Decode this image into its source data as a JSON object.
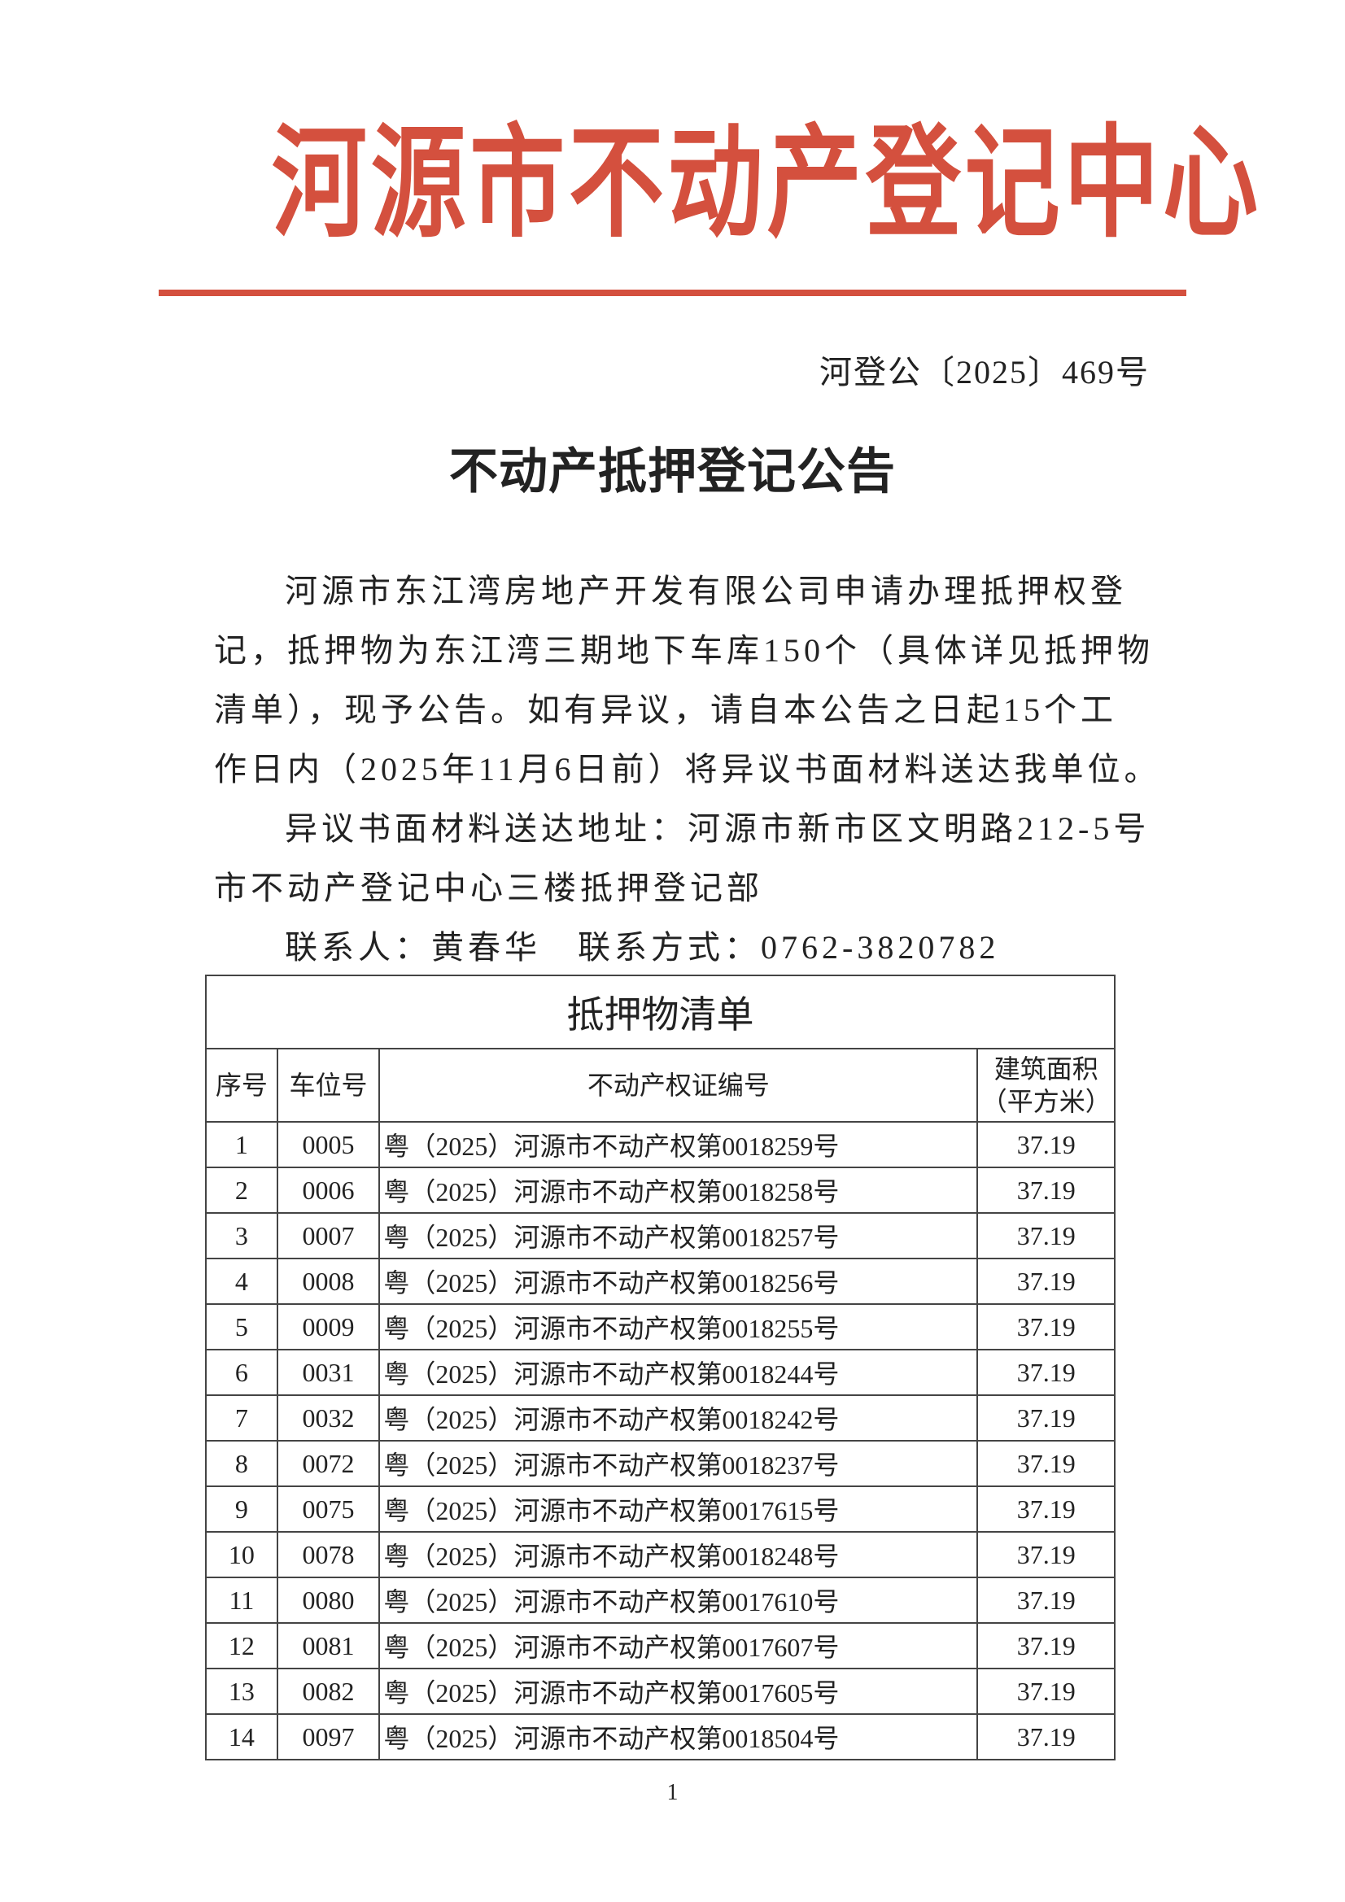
{
  "header": {
    "organization": "河源市不动产登记中心",
    "org_color": "#d4503e",
    "doc_number": "河登公〔2025〕469号"
  },
  "title": "不动产抵押登记公告",
  "body": {
    "paragraph1_lines": [
      "河源市东江湾房地产开发有限公司申请办理抵押权登",
      "记，抵押物为东江湾三期地下车库150个（具体详见抵押物",
      "清单），现予公告。如有异议，请自本公告之日起15个工",
      "作日内（2025年11月6日前）将异议书面材料送达我单位。"
    ],
    "address_lines": [
      "异议书面材料送达地址：河源市新市区文明路212-5号",
      "市不动产登记中心三楼抵押登记部"
    ],
    "contact": "联系人：黄春华　联系方式：0762-3820782"
  },
  "table": {
    "title": "抵押物清单",
    "headers": [
      "序号",
      "车位号",
      "不动产权证编号",
      "建筑面积（平方米）"
    ],
    "rows": [
      [
        "1",
        "0005",
        "粤（2025）河源市不动产权第0018259号",
        "37.19"
      ],
      [
        "2",
        "0006",
        "粤（2025）河源市不动产权第0018258号",
        "37.19"
      ],
      [
        "3",
        "0007",
        "粤（2025）河源市不动产权第0018257号",
        "37.19"
      ],
      [
        "4",
        "0008",
        "粤（2025）河源市不动产权第0018256号",
        "37.19"
      ],
      [
        "5",
        "0009",
        "粤（2025）河源市不动产权第0018255号",
        "37.19"
      ],
      [
        "6",
        "0031",
        "粤（2025）河源市不动产权第0018244号",
        "37.19"
      ],
      [
        "7",
        "0032",
        "粤（2025）河源市不动产权第0018242号",
        "37.19"
      ],
      [
        "8",
        "0072",
        "粤（2025）河源市不动产权第0018237号",
        "37.19"
      ],
      [
        "9",
        "0075",
        "粤（2025）河源市不动产权第0017615号",
        "37.19"
      ],
      [
        "10",
        "0078",
        "粤（2025）河源市不动产权第0018248号",
        "37.19"
      ],
      [
        "11",
        "0080",
        "粤（2025）河源市不动产权第0017610号",
        "37.19"
      ],
      [
        "12",
        "0081",
        "粤（2025）河源市不动产权第0017607号",
        "37.19"
      ],
      [
        "13",
        "0082",
        "粤（2025）河源市不动产权第0017605号",
        "37.19"
      ],
      [
        "14",
        "0097",
        "粤（2025）河源市不动产权第0018504号",
        "37.19"
      ]
    ]
  },
  "page_number": "1"
}
